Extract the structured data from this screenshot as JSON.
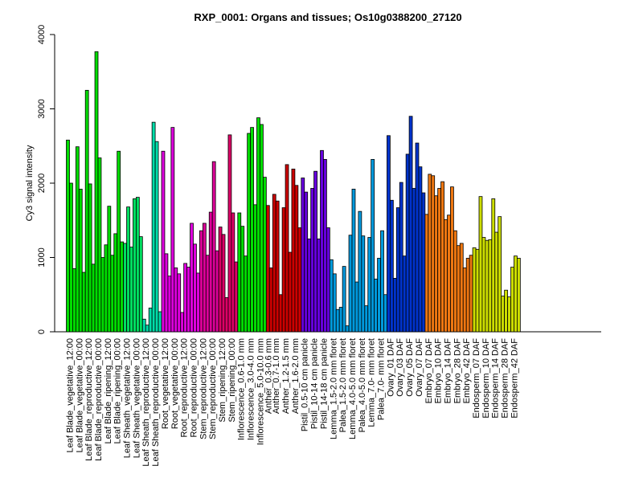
{
  "chart_data": {
    "type": "bar",
    "title": "RXP_0001: Organs and tissues; Os10g0388200_27120",
    "xlabel": "",
    "ylabel": "Cy3 signal intensity",
    "ylim": [
      0,
      4000
    ],
    "yticks": [
      0,
      1000,
      2000,
      3000,
      4000
    ],
    "grid": false,
    "groups": [
      {
        "label": "Leaf Blade_vegetative_12:00",
        "color": "#00DD00",
        "values": [
          2580,
          2000,
          850
        ]
      },
      {
        "label": "Leaf Blade_vegetative_00:00",
        "color": "#00DD00",
        "values": [
          2490,
          1920,
          800
        ]
      },
      {
        "label": "Leaf Blade_reproductive_12:00",
        "color": "#00DD00",
        "values": [
          3250,
          1990,
          910
        ]
      },
      {
        "label": "Leaf Blade_reproductive_00:00",
        "color": "#00DD00",
        "values": [
          3770,
          2340,
          1000
        ]
      },
      {
        "label": "Leaf Blade_ripening_12:00",
        "color": "#00DD00",
        "values": [
          1170,
          1690,
          1030
        ]
      },
      {
        "label": "Leaf Blade_ripening_00:00",
        "color": "#00DD00",
        "values": [
          1320,
          2430,
          1210
        ]
      },
      {
        "label": "Leaf Sheath_vegetative_12:00",
        "color": "#00DD60",
        "values": [
          1190,
          1680,
          1140
        ]
      },
      {
        "label": "Leaf Sheath_vegetative_00:00",
        "color": "#00DD60",
        "values": [
          1790,
          1810,
          1280
        ]
      },
      {
        "label": "Leaf Sheath_reproductive_12:00",
        "color": "#00DDAA",
        "values": [
          170,
          90,
          320
        ]
      },
      {
        "label": "Leaf Sheath_reproductive_00:00",
        "color": "#00DDAA",
        "values": [
          2820,
          2560,
          270
        ]
      },
      {
        "label": "Root_vegetative_12:00",
        "color": "#DD00DD",
        "values": [
          2430,
          1050,
          750
        ]
      },
      {
        "label": "Root_vegetative_00:00",
        "color": "#DD00DD",
        "values": [
          2750,
          860,
          780
        ]
      },
      {
        "label": "Root_reproductive_12:00",
        "color": "#DD00DD",
        "values": [
          260,
          920,
          870
        ]
      },
      {
        "label": "Root_reproductive_00:00",
        "color": "#DD00DD",
        "values": [
          1460,
          1180,
          790
        ]
      },
      {
        "label": "Stem_reproductive_12:00",
        "color": "#DD0099",
        "values": [
          1360,
          1460,
          1030
        ]
      },
      {
        "label": "Stem_reproductive_00:00",
        "color": "#DD0099",
        "values": [
          1610,
          2290,
          1090
        ]
      },
      {
        "label": "Stem_ripening_12:00",
        "color": "#DD0066",
        "values": [
          1410,
          1310,
          460
        ]
      },
      {
        "label": "Stem_ripening_00:00",
        "color": "#DD0066",
        "values": [
          2650,
          1600,
          940
        ]
      },
      {
        "label": "Inflorescence_0.6-1.0 mm",
        "color": "#00DD00",
        "values": [
          1600,
          1420,
          1020
        ]
      },
      {
        "label": "Inflorescence_3.0-4.0 mm",
        "color": "#00DD00",
        "values": [
          2670,
          2750,
          1710
        ]
      },
      {
        "label": "Inflorescence_5.0-10.0 mm",
        "color": "#00DD00",
        "values": [
          2880,
          2790,
          2080
        ]
      },
      {
        "label": "Anther_0.3-0.6 mm",
        "color": "#CC0000",
        "values": [
          1700,
          860
        ]
      },
      {
        "label": "Anther_0.7-1.0 mm",
        "color": "#CC0000",
        "values": [
          1850,
          1760,
          500
        ]
      },
      {
        "label": "Anther_1.2-1.5 mm",
        "color": "#CC0000",
        "values": [
          1670,
          2250,
          1070
        ]
      },
      {
        "label": "Anther_1.6-2.0 mm",
        "color": "#CC0000",
        "values": [
          2190,
          1970,
          1400
        ]
      },
      {
        "label": "Pistil_0.5-10 cm panicle",
        "color": "#6600DD",
        "values": [
          2070,
          1880,
          1250
        ]
      },
      {
        "label": "Pistil_10-14 cm panicle",
        "color": "#6600DD",
        "values": [
          1930,
          2160,
          1250
        ]
      },
      {
        "label": "Pistil_14-18 cm panicle",
        "color": "#6600DD",
        "values": [
          2440,
          2320,
          1400
        ]
      },
      {
        "label": "Lemma_1.5-2.0 mm floret",
        "color": "#0099DD",
        "values": [
          970,
          780,
          300
        ]
      },
      {
        "label": "Palea_1.5-2.0 mm floret",
        "color": "#0099DD",
        "values": [
          330,
          880,
          80
        ]
      },
      {
        "label": "Lemma_4.0-5.0 mm floret",
        "color": "#0099DD",
        "values": [
          1300,
          1920,
          670
        ]
      },
      {
        "label": "Palea_4.0-5.0 mm floret",
        "color": "#0099DD",
        "values": [
          1620,
          1290,
          350
        ]
      },
      {
        "label": "Lemma_7.0- mm floret",
        "color": "#0099DD",
        "values": [
          1270,
          2320,
          710
        ]
      },
      {
        "label": "Palea_7.0- mm floret",
        "color": "#0099DD",
        "values": [
          990,
          1360,
          500
        ]
      },
      {
        "label": "Ovary_01 DAF",
        "color": "#0033CC",
        "values": [
          2640,
          1770,
          720
        ]
      },
      {
        "label": "Ovary_03 DAF",
        "color": "#0033CC",
        "values": [
          1670,
          2010,
          1020
        ]
      },
      {
        "label": "Ovary_05 DAF",
        "color": "#0033CC",
        "values": [
          2390,
          2900,
          1930
        ]
      },
      {
        "label": "Ovary_07 DAF",
        "color": "#0033CC",
        "values": [
          2540,
          2220,
          1870
        ]
      },
      {
        "label": "Embryo_07 DAF",
        "color": "#EE7711",
        "values": [
          1580,
          2120,
          2100
        ]
      },
      {
        "label": "Embryo_10 DAF",
        "color": "#EE7711",
        "values": [
          1830,
          1930,
          2020
        ]
      },
      {
        "label": "Embryo_14 DAF",
        "color": "#EE7711",
        "values": [
          1510,
          1570,
          1950
        ]
      },
      {
        "label": "Embryo_28 DAF",
        "color": "#EE7711",
        "values": [
          1360,
          1160,
          1190
        ]
      },
      {
        "label": "Embryo_42 DAF",
        "color": "#EE7711",
        "values": [
          860,
          990,
          1030
        ]
      },
      {
        "label": "Endosperm_07 DAF",
        "color": "#CCDD00",
        "values": [
          1130,
          1110,
          1820
        ]
      },
      {
        "label": "Endosperm_10 DAF",
        "color": "#CCDD00",
        "values": [
          1270,
          1230,
          1240
        ]
      },
      {
        "label": "Endosperm_14 DAF",
        "color": "#CCDD00",
        "values": [
          1790,
          1340,
          1550
        ]
      },
      {
        "label": "Endosperm_28 DAF",
        "color": "#CCDD00",
        "values": [
          480,
          560,
          470
        ]
      },
      {
        "label": "Endosperm_42 DAF",
        "color": "#CCDD00",
        "values": [
          870,
          1020,
          990
        ]
      }
    ]
  }
}
